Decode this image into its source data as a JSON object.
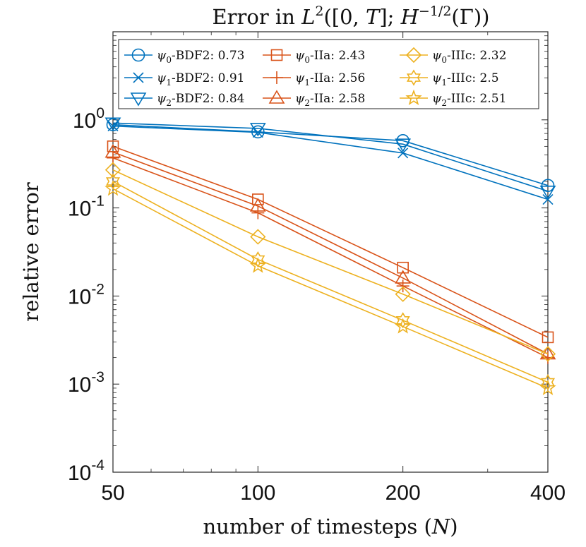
{
  "chart_data": {
    "type": "line",
    "title": "Error in L²([0,T]; H^{−1/2}(Γ))",
    "title_parts": {
      "prefix": "Error in ",
      "L": "L",
      "L_sup": "2",
      "middle": "([0, ",
      "T": "T",
      "after_T": "]; ",
      "H": "H",
      "H_sup": "−1/2",
      "suffix": "(Γ))"
    },
    "xlabel": "number of timesteps (N)",
    "xlabel_parts": {
      "prefix": "number of timesteps (",
      "var": "N",
      "suffix": ")"
    },
    "ylabel": "relative error",
    "xscale": "log",
    "yscale": "log",
    "xlim": [
      50,
      400
    ],
    "ylim": [
      0.0001,
      10
    ],
    "x": [
      50,
      100,
      200,
      400
    ],
    "xticks": [
      {
        "value": 50,
        "label": "50"
      },
      {
        "value": 100,
        "label": "100"
      },
      {
        "value": 200,
        "label": "200"
      },
      {
        "value": 400,
        "label": "400"
      }
    ],
    "yticks": [
      {
        "value": 0.0001,
        "base": "10",
        "exp": "-4"
      },
      {
        "value": 0.001,
        "base": "10",
        "exp": "-3"
      },
      {
        "value": 0.01,
        "base": "10",
        "exp": "-2"
      },
      {
        "value": 0.1,
        "base": "10",
        "exp": "-1"
      },
      {
        "value": 1,
        "base": "10",
        "exp": "0"
      }
    ],
    "grid": false,
    "legend_position": "top",
    "colors": {
      "blue": "#0072BD",
      "red": "#D95319",
      "yellow": "#EDB120"
    },
    "series": [
      {
        "name": "ψ0-BDF2: 0.73",
        "sym": "ψ",
        "sub": "0",
        "method": "-BDF2: ",
        "rate": "0.73",
        "color": "#0072BD",
        "marker": "circle",
        "values": [
          0.88,
          0.73,
          0.58,
          0.18
        ]
      },
      {
        "name": "ψ1-BDF2: 0.91",
        "sym": "ψ",
        "sub": "1",
        "method": "-BDF2: ",
        "rate": "0.91",
        "color": "#0072BD",
        "marker": "x",
        "values": [
          0.85,
          0.72,
          0.42,
          0.125
        ]
      },
      {
        "name": "ψ2-BDF2: 0.84",
        "sym": "ψ",
        "sub": "2",
        "method": "-BDF2: ",
        "rate": "0.84",
        "color": "#0072BD",
        "marker": "triangle-down",
        "values": [
          0.92,
          0.8,
          0.53,
          0.155
        ]
      },
      {
        "name": "ψ0-IIa: 2.43",
        "sym": "ψ",
        "sub": "0",
        "method": "-IIa: ",
        "rate": "2.43",
        "color": "#D95319",
        "marker": "square",
        "values": [
          0.5,
          0.125,
          0.021,
          0.0034
        ]
      },
      {
        "name": "ψ1-IIa: 2.56",
        "sym": "ψ",
        "sub": "1",
        "method": "-IIa: ",
        "rate": "2.56",
        "color": "#D95319",
        "marker": "plus",
        "values": [
          0.37,
          0.088,
          0.013,
          0.002
        ]
      },
      {
        "name": "ψ2-IIa: 2.58",
        "sym": "ψ",
        "sub": "2",
        "method": "-IIa: ",
        "rate": "2.58",
        "color": "#D95319",
        "marker": "triangle-up",
        "values": [
          0.43,
          0.105,
          0.016,
          0.0022
        ]
      },
      {
        "name": "ψ0-IIIc: 2.32",
        "sym": "ψ",
        "sub": "0",
        "method": "-IIIc: ",
        "rate": "2.32",
        "color": "#EDB120",
        "marker": "diamond",
        "values": [
          0.27,
          0.047,
          0.0105,
          0.0022
        ]
      },
      {
        "name": "ψ1-IIIc: 2.5",
        "sym": "ψ",
        "sub": "1",
        "method": "-IIIc: ",
        "rate": "2.5",
        "color": "#EDB120",
        "marker": "hexagram",
        "values": [
          0.2,
          0.026,
          0.0053,
          0.00105
        ]
      },
      {
        "name": "ψ2-IIIc: 2.51",
        "sym": "ψ",
        "sub": "2",
        "method": "-IIIc: ",
        "rate": "2.51",
        "color": "#EDB120",
        "marker": "star",
        "values": [
          0.165,
          0.022,
          0.0045,
          0.0009
        ]
      }
    ]
  }
}
